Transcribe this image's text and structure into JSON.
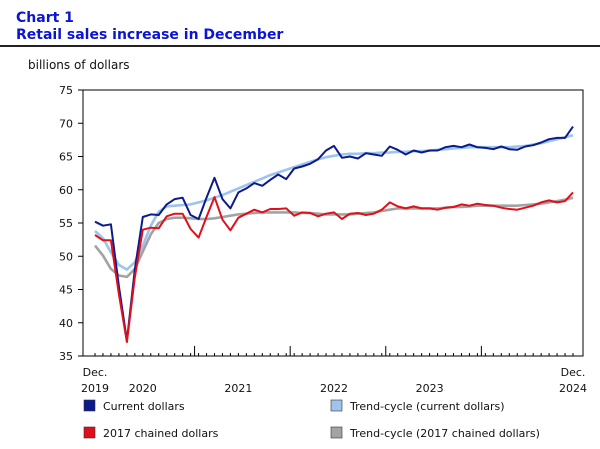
{
  "header": {
    "chart_number": "Chart 1",
    "title": "Retail sales increase in December"
  },
  "colors": {
    "current": "#0b1a8c",
    "trend_current": "#9cc4ec",
    "chained": "#e0101a",
    "trend_chained": "#a3a3a3"
  },
  "chart_data": {
    "type": "line",
    "title": "Retail sales increase in December",
    "ylabel": "billions of dollars",
    "xlabel": "",
    "ylim": [
      35,
      75
    ],
    "yticks": [
      35,
      40,
      45,
      50,
      55,
      60,
      65,
      70,
      75
    ],
    "grid": false,
    "legend": "bottom",
    "x_start": "2019-12",
    "x_end": "2024-12",
    "xlabels": [
      {
        "month": "2019-12",
        "line1": "Dec.",
        "line2": "2019"
      },
      {
        "month": "2020-06",
        "line1": "",
        "line2": "2020"
      },
      {
        "month": "2021-06",
        "line1": "",
        "line2": "2021"
      },
      {
        "month": "2022-06",
        "line1": "",
        "line2": "2022"
      },
      {
        "month": "2023-06",
        "line1": "",
        "line2": "2023"
      },
      {
        "month": "2024-12",
        "line1": "Dec.",
        "line2": "2024"
      }
    ],
    "series": [
      {
        "name": "Current dollars",
        "color": "#0b1a8c",
        "values": [
          55.2,
          54.6,
          54.8,
          45.5,
          37.3,
          48.0,
          55.9,
          56.3,
          56.2,
          57.8,
          58.6,
          58.8,
          56.2,
          55.6,
          58.8,
          61.8,
          58.6,
          57.2,
          59.6,
          60.2,
          61.0,
          60.6,
          61.5,
          62.3,
          61.6,
          63.2,
          63.5,
          63.9,
          64.6,
          65.9,
          66.6,
          64.8,
          65.0,
          64.7,
          65.5,
          65.3,
          65.1,
          66.5,
          66.0,
          65.3,
          65.9,
          65.6,
          65.9,
          65.9,
          66.4,
          66.6,
          66.4,
          66.8,
          66.4,
          66.3,
          66.1,
          66.5,
          66.1,
          66.0,
          66.5,
          66.7,
          67.1,
          67.6,
          67.8,
          67.8,
          69.5
        ]
      },
      {
        "name": "Trend-cycle (current dollars)",
        "color": "#9cc4ec",
        "values": [
          53.8,
          52.7,
          50.6,
          48.7,
          48.0,
          49.1,
          51.6,
          54.6,
          56.7,
          57.5,
          57.6,
          57.7,
          57.8,
          58.1,
          58.4,
          58.8,
          59.2,
          59.7,
          60.2,
          60.7,
          61.2,
          61.7,
          62.2,
          62.6,
          63.0,
          63.4,
          63.8,
          64.2,
          64.6,
          64.9,
          65.1,
          65.3,
          65.4,
          65.4,
          65.5,
          65.5,
          65.6,
          65.6,
          65.7,
          65.7,
          65.8,
          65.8,
          65.9,
          66.0,
          66.1,
          66.2,
          66.3,
          66.4,
          66.4,
          66.4,
          66.4,
          66.4,
          66.4,
          66.5,
          66.6,
          66.8,
          67.0,
          67.3,
          67.6,
          67.9,
          68.2
        ]
      },
      {
        "name": "2017 chained dollars",
        "color": "#e0101a",
        "values": [
          53.2,
          52.4,
          52.4,
          44.3,
          37.1,
          46.8,
          54.0,
          54.3,
          54.2,
          56.0,
          56.4,
          56.4,
          54.1,
          52.8,
          55.9,
          58.9,
          55.5,
          53.9,
          55.8,
          56.4,
          57.0,
          56.6,
          57.1,
          57.1,
          57.2,
          56.1,
          56.6,
          56.5,
          56.0,
          56.4,
          56.6,
          55.6,
          56.4,
          56.5,
          56.2,
          56.4,
          57.0,
          58.1,
          57.5,
          57.2,
          57.5,
          57.2,
          57.2,
          57.0,
          57.3,
          57.4,
          57.8,
          57.6,
          57.9,
          57.7,
          57.6,
          57.3,
          57.1,
          57.0,
          57.3,
          57.6,
          58.1,
          58.4,
          58.1,
          58.3,
          59.6
        ]
      },
      {
        "name": "Trend-cycle (2017 chained dollars)",
        "color": "#a3a3a3",
        "values": [
          51.6,
          50.1,
          48.1,
          47.1,
          46.9,
          48.1,
          50.7,
          53.3,
          55.0,
          55.6,
          55.8,
          55.8,
          55.7,
          55.6,
          55.6,
          55.7,
          55.9,
          56.1,
          56.3,
          56.4,
          56.5,
          56.6,
          56.6,
          56.6,
          56.6,
          56.6,
          56.5,
          56.5,
          56.4,
          56.3,
          56.3,
          56.3,
          56.3,
          56.4,
          56.5,
          56.6,
          56.8,
          57.0,
          57.2,
          57.2,
          57.2,
          57.2,
          57.2,
          57.2,
          57.3,
          57.4,
          57.4,
          57.5,
          57.6,
          57.6,
          57.6,
          57.6,
          57.6,
          57.6,
          57.7,
          57.8,
          57.9,
          58.1,
          58.3,
          58.5,
          58.8
        ]
      }
    ]
  }
}
